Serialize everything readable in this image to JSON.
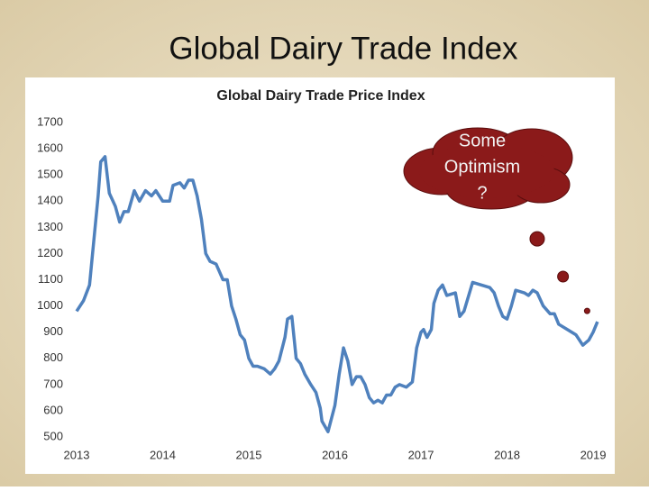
{
  "slide_title": "Global Dairy Trade Index",
  "chart_data": {
    "type": "line",
    "title": "Global Dairy Trade Price Index",
    "xlim": [
      2013,
      2019.1
    ],
    "xticks": [
      2013,
      2014,
      2015,
      2016,
      2017,
      2018,
      2019
    ],
    "ylim": [
      500,
      1700
    ],
    "yticks": [
      500,
      600,
      700,
      800,
      900,
      1000,
      1100,
      1200,
      1300,
      1400,
      1500,
      1600,
      1700
    ],
    "grid": false,
    "series": [
      {
        "color": "#4f81bd",
        "x": [
          2013.0,
          2013.08,
          2013.15,
          2013.2,
          2013.25,
          2013.28,
          2013.33,
          2013.38,
          2013.45,
          2013.5,
          2013.55,
          2013.6,
          2013.67,
          2013.73,
          2013.8,
          2013.87,
          2013.92,
          2014.0,
          2014.08,
          2014.12,
          2014.2,
          2014.25,
          2014.3,
          2014.35,
          2014.4,
          2014.45,
          2014.5,
          2014.55,
          2014.62,
          2014.7,
          2014.75,
          2014.8,
          2014.85,
          2014.9,
          2014.95,
          2015.0,
          2015.05,
          2015.1,
          2015.18,
          2015.25,
          2015.3,
          2015.35,
          2015.42,
          2015.45,
          2015.5,
          2015.55,
          2015.6,
          2015.65,
          2015.72,
          2015.78,
          2015.83,
          2015.85,
          2015.92,
          2016.0,
          2016.05,
          2016.1,
          2016.15,
          2016.2,
          2016.25,
          2016.3,
          2016.35,
          2016.4,
          2016.45,
          2016.5,
          2016.55,
          2016.6,
          2016.65,
          2016.7,
          2016.75,
          2016.83,
          2016.9,
          2016.95,
          2017.0,
          2017.03,
          2017.07,
          2017.12,
          2017.15,
          2017.2,
          2017.25,
          2017.3,
          2017.4,
          2017.45,
          2017.5,
          2017.6,
          2017.7,
          2017.8,
          2017.85,
          2017.9,
          2017.95,
          2018.0,
          2018.05,
          2018.1,
          2018.2,
          2018.25,
          2018.3,
          2018.35,
          2018.42,
          2018.5,
          2018.55,
          2018.6,
          2018.7,
          2018.8,
          2018.88,
          2018.95,
          2019.0,
          2019.05
        ],
        "values": [
          980,
          1020,
          1080,
          1250,
          1420,
          1550,
          1570,
          1430,
          1380,
          1320,
          1360,
          1360,
          1440,
          1400,
          1440,
          1420,
          1440,
          1400,
          1400,
          1460,
          1470,
          1450,
          1480,
          1480,
          1420,
          1330,
          1200,
          1170,
          1160,
          1100,
          1100,
          1000,
          950,
          890,
          870,
          800,
          770,
          770,
          760,
          740,
          760,
          790,
          880,
          950,
          960,
          800,
          780,
          740,
          700,
          670,
          610,
          560,
          520,
          620,
          740,
          840,
          790,
          700,
          730,
          730,
          700,
          650,
          630,
          640,
          630,
          660,
          660,
          690,
          700,
          690,
          710,
          840,
          900,
          910,
          880,
          910,
          1010,
          1060,
          1080,
          1040,
          1050,
          960,
          980,
          1090,
          1080,
          1070,
          1050,
          1000,
          960,
          950,
          1000,
          1060,
          1050,
          1040,
          1060,
          1050,
          1000,
          970,
          970,
          930,
          910,
          890,
          850,
          870,
          900,
          940
        ]
      }
    ],
    "highlight_points": {
      "color": "#8b1a1a",
      "x": [
        2018.35,
        2018.65,
        2018.93
      ],
      "values": [
        1256,
        1112,
        981
      ],
      "sizes": [
        8,
        6,
        3
      ]
    },
    "annotation": [
      "Some",
      "Optimism",
      "?"
    ]
  }
}
